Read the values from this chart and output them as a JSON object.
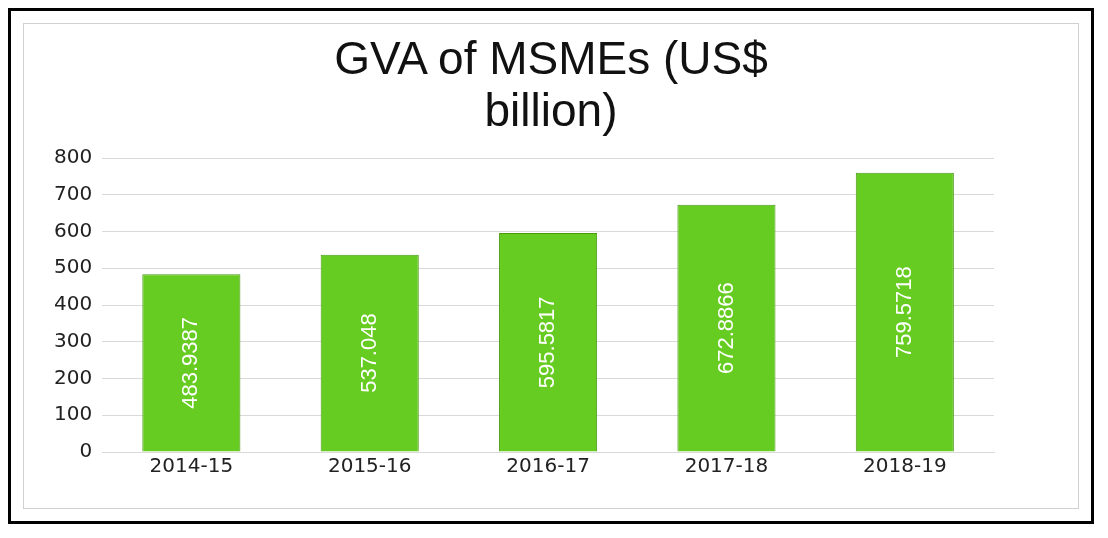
{
  "chart_data": {
    "type": "bar",
    "title": "GVA of MSMEs (US$ billion)",
    "categories": [
      "2014-15",
      "2015-16",
      "2016-17",
      "2017-18",
      "2018-19"
    ],
    "values": [
      483.9387,
      537.048,
      595.5817,
      672.8866,
      759.5718
    ],
    "color": "#66cc22",
    "ylim": [
      0,
      800
    ],
    "yticks": [
      0,
      100,
      200,
      300,
      400,
      500,
      600,
      700,
      800
    ],
    "grid": "y",
    "data_labels": true,
    "legend": false
  }
}
